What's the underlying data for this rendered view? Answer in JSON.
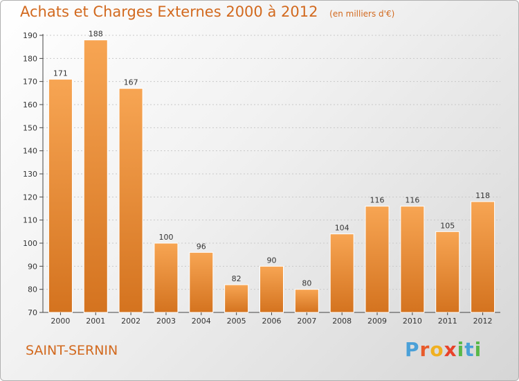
{
  "chart_data": {
    "type": "bar",
    "title": "Achats et Charges Externes 2000 à 2012",
    "subtitle": "(en milliers d'€)",
    "categories": [
      "2000",
      "2001",
      "2002",
      "2003",
      "2004",
      "2005",
      "2006",
      "2007",
      "2008",
      "2009",
      "2010",
      "2011",
      "2012"
    ],
    "values": [
      171,
      188,
      167,
      100,
      96,
      82,
      90,
      80,
      104,
      116,
      116,
      105,
      118
    ],
    "ylim": [
      70,
      190
    ],
    "yticks": [
      70,
      80,
      90,
      100,
      110,
      120,
      130,
      140,
      150,
      160,
      170,
      180,
      190
    ],
    "grid": true,
    "bar_color": "#f0a050"
  },
  "commune": "SAINT-SERNIN",
  "brand": {
    "letters": [
      "P",
      "r",
      "o",
      "x",
      "i",
      "t",
      "i"
    ],
    "colors": [
      "#4aa0d8",
      "#e85a2a",
      "#f0b020",
      "#e8422a",
      "#58b848",
      "#4aa0d8",
      "#58b848"
    ]
  }
}
